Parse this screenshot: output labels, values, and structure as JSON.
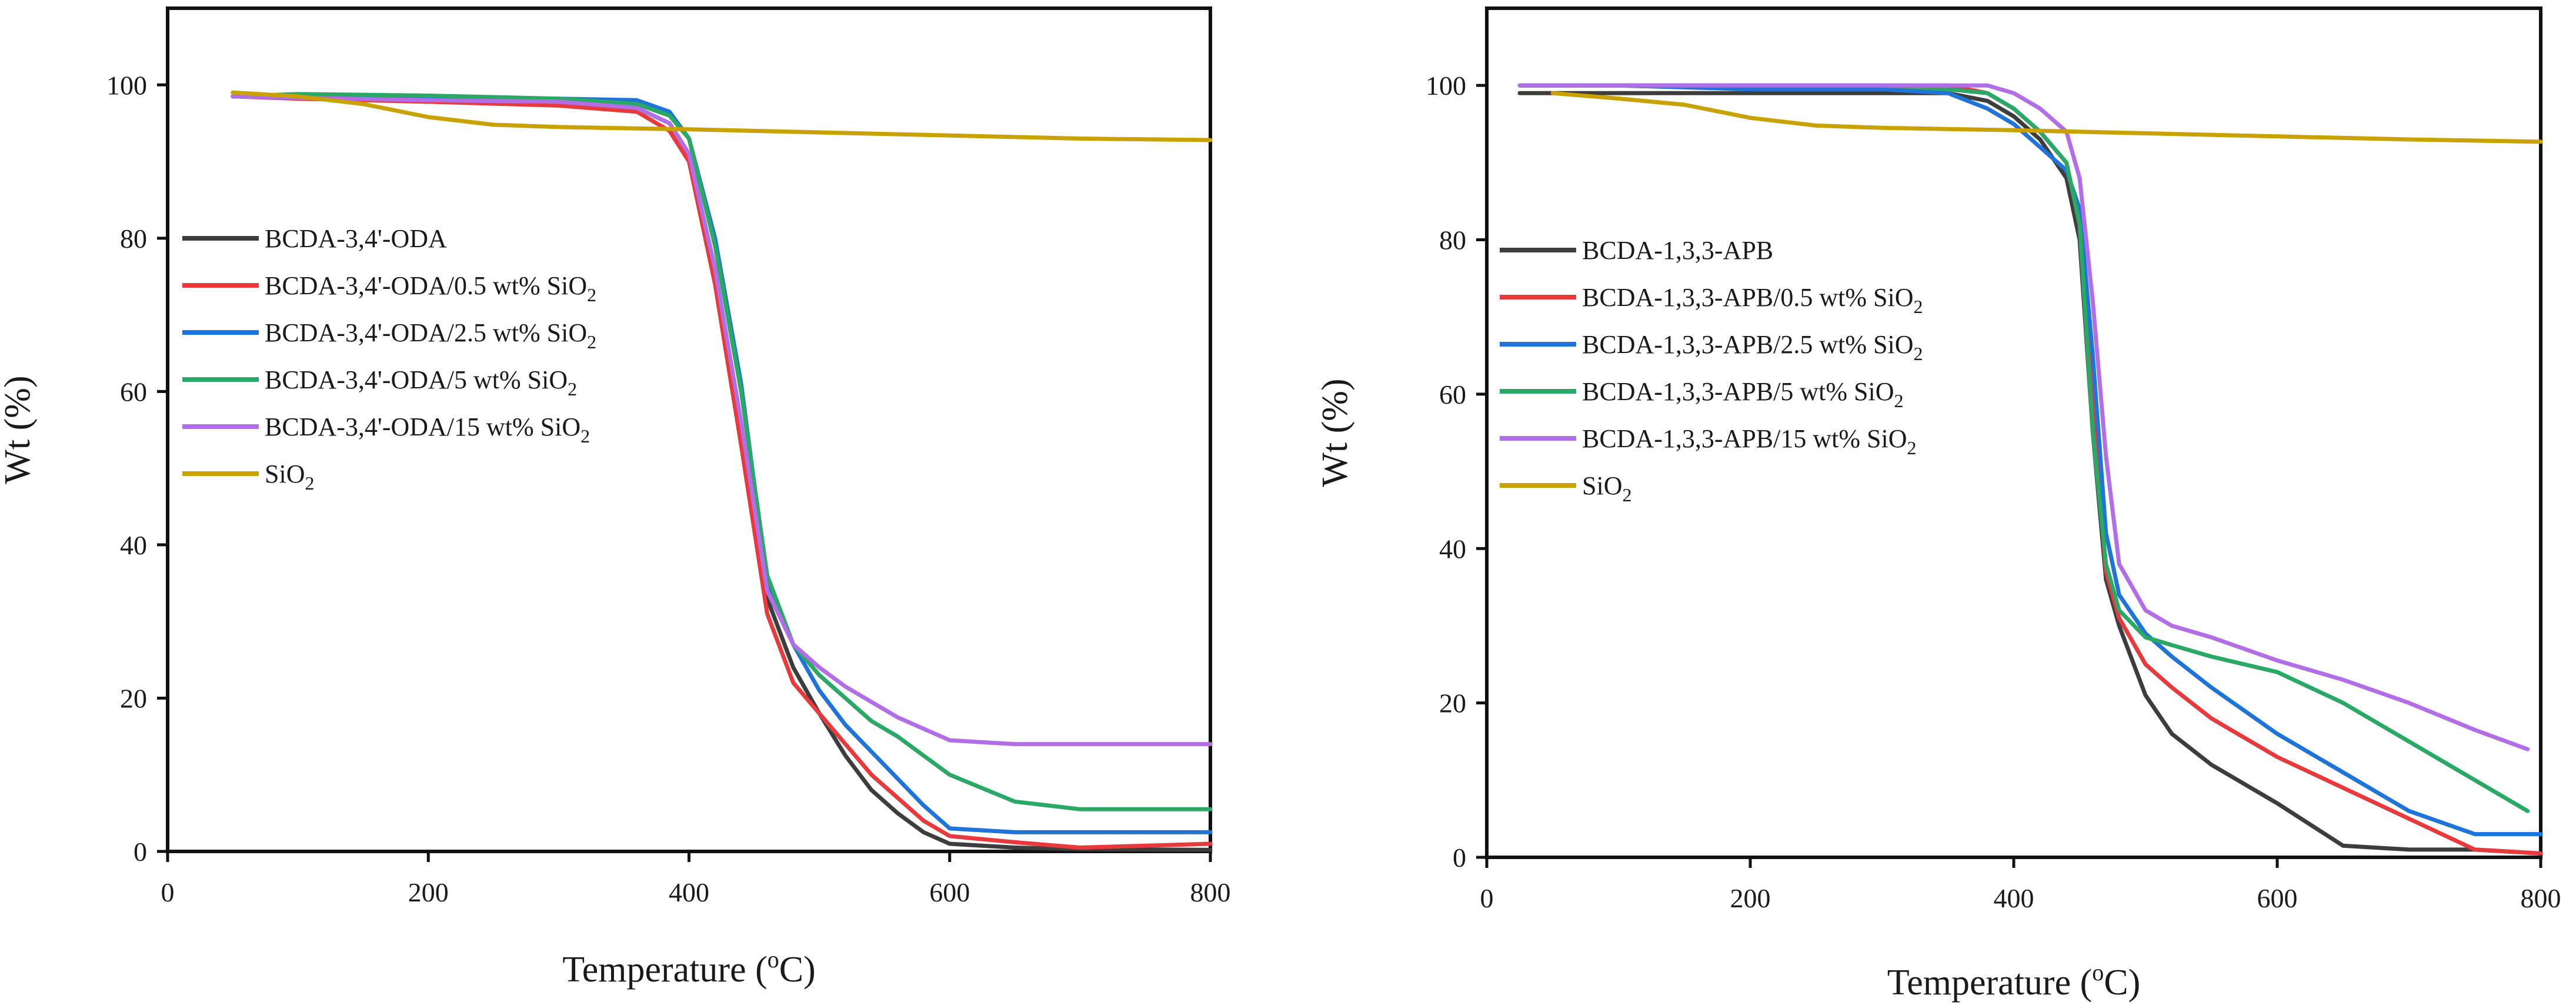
{
  "chart_data": [
    {
      "type": "line",
      "xlabel": "Temperature (",
      "xlabel_sup": "o",
      "xlabel_suffix": "C)",
      "ylabel": "Wt (%)",
      "xlim": [
        0,
        800
      ],
      "ylim": [
        0,
        110
      ],
      "xticks": [
        0,
        200,
        400,
        600,
        800
      ],
      "yticks": [
        0,
        20,
        40,
        60,
        80,
        100
      ],
      "legend_position": "middle-left",
      "series": [
        {
          "name": "BCDA-3,4'-ODA",
          "color": "#3d3d3d",
          "x": [
            50,
            100,
            200,
            300,
            360,
            385,
            400,
            420,
            440,
            460,
            480,
            500,
            520,
            540,
            560,
            580,
            600,
            650,
            700,
            800
          ],
          "y": [
            98.5,
            98.3,
            97.8,
            97.5,
            97,
            95,
            91,
            76,
            55,
            33,
            24,
            18,
            12.5,
            8,
            5,
            2.5,
            1,
            0.5,
            0.3,
            0.2
          ]
        },
        {
          "name": "BCDA-3,4'-ODA/0.5 wt% SiO",
          "sub": "2",
          "color": "#e8393c",
          "x": [
            50,
            100,
            200,
            300,
            360,
            385,
            400,
            420,
            440,
            460,
            480,
            500,
            520,
            540,
            560,
            580,
            600,
            650,
            700,
            800
          ],
          "y": [
            98.5,
            98.2,
            97.8,
            97.3,
            96.5,
            94,
            90,
            74,
            53,
            31,
            22,
            18,
            14,
            10,
            7,
            4,
            2,
            1.2,
            0.5,
            1
          ]
        },
        {
          "name": "BCDA-3,4'-ODA/2.5 wt% SiO",
          "sub": "2",
          "color": "#1f74d9",
          "x": [
            50,
            100,
            200,
            300,
            360,
            385,
            400,
            420,
            440,
            460,
            480,
            500,
            520,
            540,
            560,
            580,
            600,
            650,
            700,
            800
          ],
          "y": [
            98.5,
            98.4,
            98.3,
            98.2,
            98,
            96.5,
            93,
            80,
            61,
            35,
            27,
            21,
            16.5,
            13,
            9.5,
            6,
            3,
            2.5,
            2.5,
            2.5
          ]
        },
        {
          "name": "BCDA-3,4'-ODA/5 wt% SiO",
          "sub": "2",
          "color": "#2aa866",
          "x": [
            50,
            100,
            200,
            300,
            360,
            385,
            400,
            420,
            440,
            460,
            480,
            500,
            520,
            540,
            560,
            580,
            600,
            650,
            700,
            800
          ],
          "y": [
            98.5,
            98.8,
            98.6,
            98.2,
            97.5,
            96,
            93,
            79,
            60,
            36,
            27,
            23,
            20,
            17,
            15,
            12.5,
            10,
            6.5,
            5.5,
            5.5
          ]
        },
        {
          "name": "BCDA-3,4'-ODA/15 wt% SiO",
          "sub": "2",
          "color": "#b26ee6",
          "x": [
            50,
            100,
            200,
            300,
            360,
            385,
            400,
            420,
            440,
            460,
            480,
            500,
            520,
            540,
            560,
            580,
            600,
            650,
            700,
            800
          ],
          "y": [
            98.5,
            98.3,
            98,
            97.8,
            97,
            95,
            91,
            76,
            56,
            34,
            27,
            24,
            21.5,
            19.5,
            17.5,
            16,
            14.5,
            14,
            14,
            14
          ]
        },
        {
          "name": "SiO",
          "sub": "2",
          "color": "#c9a200",
          "x": [
            50,
            100,
            150,
            200,
            250,
            300,
            400,
            500,
            600,
            700,
            800
          ],
          "y": [
            99,
            98.5,
            97.5,
            95.8,
            94.8,
            94.5,
            94.2,
            93.8,
            93.4,
            93,
            92.8
          ]
        }
      ]
    },
    {
      "type": "line",
      "xlabel": "Temperature (",
      "xlabel_sup": "o",
      "xlabel_suffix": "C)",
      "ylabel": "Wt (%)",
      "xlim": [
        0,
        800
      ],
      "ylim": [
        0,
        110
      ],
      "xticks": [
        0,
        200,
        400,
        600,
        800
      ],
      "yticks": [
        0,
        20,
        40,
        60,
        80,
        100
      ],
      "legend_position": "middle-left",
      "series": [
        {
          "name": "BCDA-1,3,3-APB",
          "color": "#3d3d3d",
          "x": [
            25,
            100,
            200,
            300,
            350,
            380,
            400,
            420,
            440,
            450,
            460,
            470,
            480,
            500,
            520,
            550,
            600,
            650,
            700,
            750,
            800
          ],
          "y": [
            99,
            99,
            99,
            99,
            99,
            98,
            96,
            93,
            88,
            80,
            55,
            36,
            30,
            21,
            16,
            12,
            7,
            1.5,
            1,
            1,
            0.5
          ]
        },
        {
          "name": "BCDA-1,3,3-APB/0.5 wt% SiO",
          "sub": "2",
          "color": "#e8393c",
          "x": [
            25,
            100,
            200,
            300,
            350,
            380,
            400,
            420,
            440,
            450,
            460,
            470,
            480,
            500,
            520,
            550,
            600,
            650,
            700,
            750,
            800
          ],
          "y": [
            100,
            100,
            100,
            100,
            100,
            99,
            97,
            94,
            90,
            82,
            58,
            37,
            31,
            25,
            22,
            18,
            13,
            9,
            5,
            1,
            0.5
          ]
        },
        {
          "name": "BCDA-1,3,3-APB/2.5 wt% SiO",
          "sub": "2",
          "color": "#1f74d9",
          "x": [
            25,
            100,
            200,
            300,
            350,
            380,
            400,
            420,
            440,
            450,
            460,
            470,
            480,
            500,
            520,
            550,
            600,
            650,
            700,
            750,
            800
          ],
          "y": [
            100,
            100,
            99.5,
            99.5,
            99,
            97,
            95,
            92,
            89,
            84,
            65,
            42,
            34,
            29,
            26,
            22,
            16,
            11,
            6,
            3,
            3
          ]
        },
        {
          "name": "BCDA-1,3,3-APB/5 wt% SiO",
          "sub": "2",
          "color": "#2aa866",
          "x": [
            25,
            100,
            200,
            300,
            350,
            380,
            400,
            420,
            440,
            450,
            460,
            470,
            480,
            500,
            520,
            550,
            600,
            650,
            700,
            750,
            790
          ],
          "y": [
            100,
            100,
            100,
            100,
            99.5,
            99,
            97,
            94,
            90,
            82,
            55,
            38,
            32,
            28.5,
            27.5,
            26,
            24,
            20,
            15,
            10,
            6
          ]
        },
        {
          "name": "BCDA-1,3,3-APB/15 wt% SiO",
          "sub": "2",
          "color": "#b26ee6",
          "x": [
            25,
            100,
            200,
            300,
            350,
            380,
            400,
            420,
            440,
            450,
            460,
            470,
            480,
            500,
            520,
            550,
            600,
            650,
            700,
            750,
            790
          ],
          "y": [
            100,
            100,
            100,
            100,
            100,
            100,
            99,
            97,
            94,
            88,
            72,
            52,
            38,
            32,
            30,
            28.5,
            25.5,
            23,
            20,
            16.5,
            14
          ]
        },
        {
          "name": "SiO",
          "sub": "2",
          "color": "#c9a200",
          "x": [
            50,
            100,
            150,
            200,
            250,
            300,
            400,
            500,
            600,
            700,
            800
          ],
          "y": [
            99,
            98.3,
            97.5,
            95.8,
            94.8,
            94.5,
            94.2,
            93.8,
            93.4,
            93,
            92.7
          ]
        }
      ]
    }
  ]
}
